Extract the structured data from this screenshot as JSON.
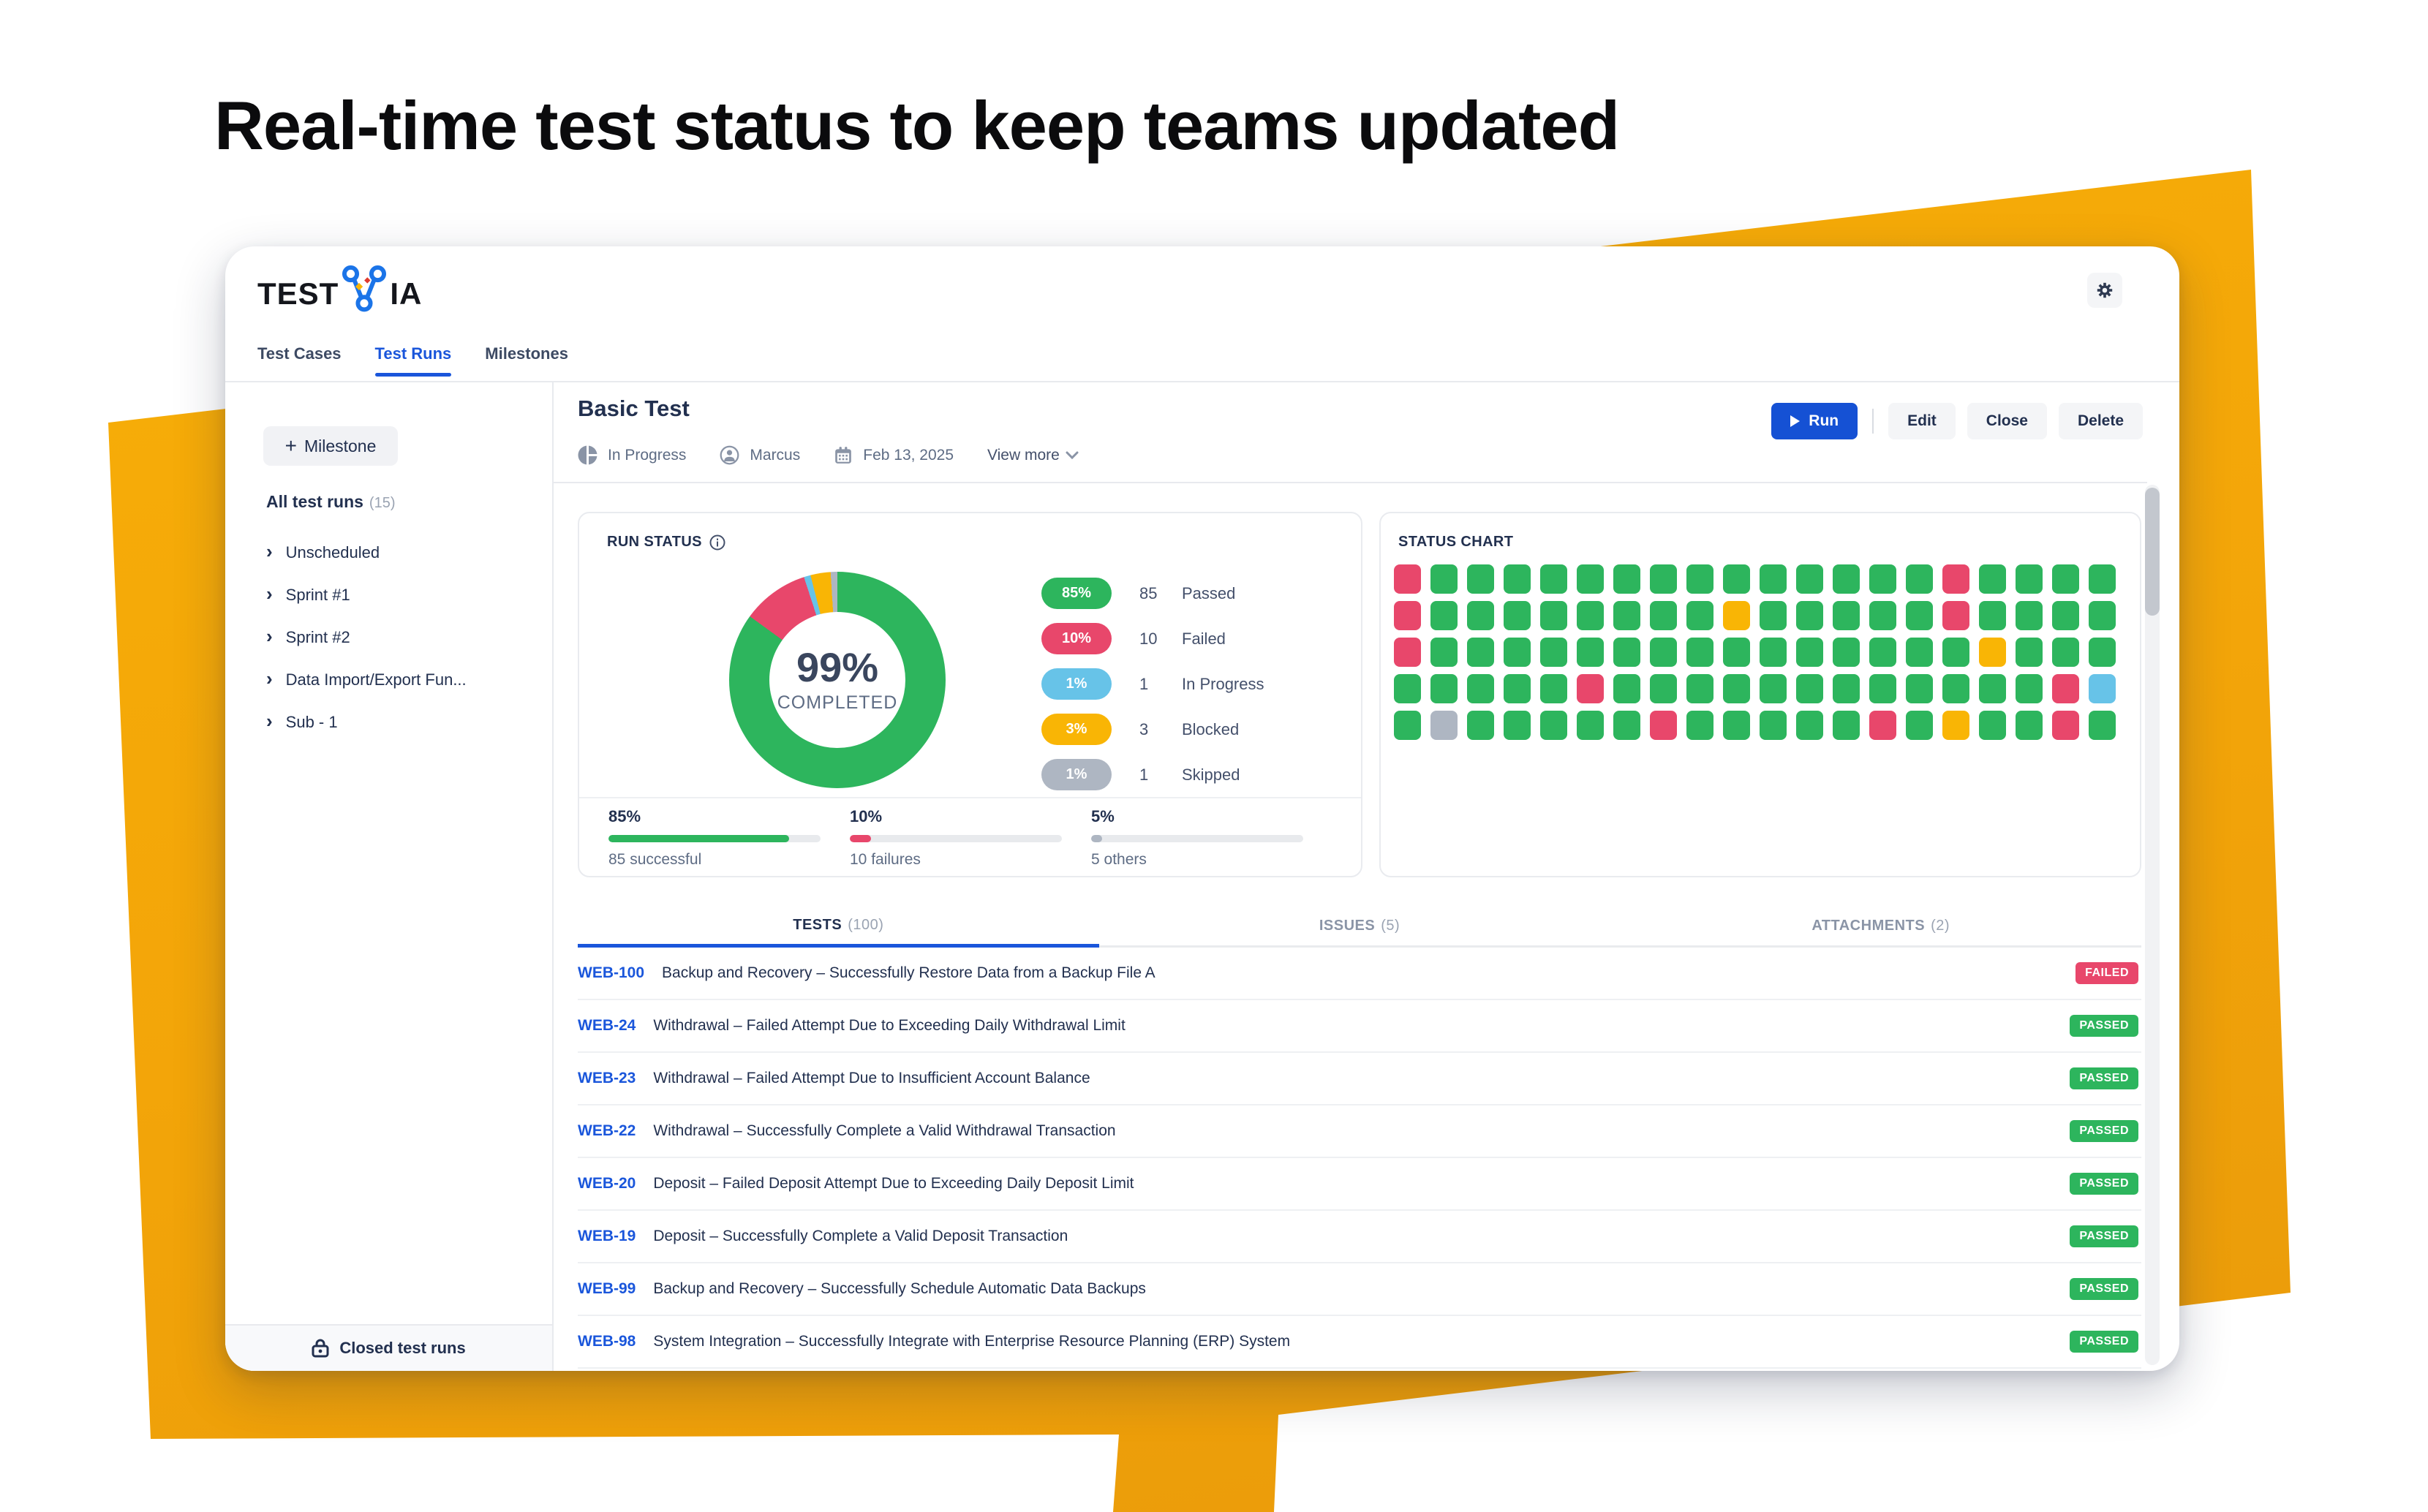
{
  "headline": "Real-time test status to keep teams updated",
  "colors": {
    "accent_blue": "#1A56DB",
    "run_button_blue": "#1551D4",
    "brand_navy": "#22304F",
    "logo_blue": "#1B74E8",
    "orange": "#F3A509",
    "green": "#2DB55D",
    "red": "#E8476B",
    "yellow": "#F9B505",
    "light_blue": "#67C3E8",
    "gray": "#AEB6C2"
  },
  "window": {
    "logo_prefix": "TEST",
    "logo_suffix": "IA",
    "nav_tabs": [
      {
        "label": "Test Cases",
        "active": false
      },
      {
        "label": "Test Runs",
        "active": true
      },
      {
        "label": "Milestones",
        "active": false
      }
    ]
  },
  "sidebar": {
    "milestone_button": "Milestone",
    "all_test_runs_label": "All test runs",
    "all_test_runs_count": "(15)",
    "items": [
      "Unscheduled",
      "Sprint #1",
      "Sprint #2",
      "Data Import/Export Fun...",
      "Sub - 1"
    ],
    "closed_label": "Closed test runs"
  },
  "run_header": {
    "title": "Basic Test",
    "status": "In Progress",
    "owner": "Marcus",
    "date": "Feb 13, 2025",
    "view_more": "View more",
    "buttons": {
      "run": "Run",
      "edit": "Edit",
      "close": "Close",
      "delete": "Delete"
    }
  },
  "run_status_panel": {
    "title": "RUN STATUS",
    "chart_data": {
      "type": "donut",
      "center_label": "99%",
      "center_sublabel": "COMPLETED",
      "segments": [
        {
          "label": "Passed",
          "count": "85",
          "percent": "85%",
          "value": 85,
          "color_key": "green"
        },
        {
          "label": "Failed",
          "count": "10",
          "percent": "10%",
          "value": 10,
          "color_key": "red"
        },
        {
          "label": "In Progress",
          "count": "1",
          "percent": "1%",
          "value": 1,
          "color_key": "light_blue"
        },
        {
          "label": "Blocked",
          "count": "3",
          "percent": "3%",
          "value": 3,
          "color_key": "yellow"
        },
        {
          "label": "Skipped",
          "count": "1",
          "percent": "1%",
          "value": 1,
          "color_key": "gray"
        }
      ]
    },
    "summary_bars": [
      {
        "percent": "85%",
        "value": 85,
        "label": "85 successful",
        "color_key": "green"
      },
      {
        "percent": "10%",
        "value": 10,
        "label": "10 failures",
        "color_key": "red"
      },
      {
        "percent": "5%",
        "value": 5,
        "label": "5 others",
        "color_key": "gray"
      }
    ]
  },
  "status_chart_panel": {
    "title": "STATUS CHART",
    "chart_data": {
      "type": "heatmap",
      "legend": {
        "P": "Passed",
        "F": "Failed",
        "B": "Blocked",
        "I": "In Progress",
        "S": "Skipped"
      },
      "color_keys": {
        "P": "green",
        "F": "red",
        "B": "yellow",
        "I": "light_blue",
        "S": "gray"
      },
      "rows": [
        "FPPPPPPPPPPPPPPFPPPP",
        "FPPPPPPPPBPPPPPFPPPP",
        "FPPPPPPPPPPPPPPPBPPP",
        "PPPPPFPPPPPPPPPPPPFI",
        "PSPPPPPFPPPPPFPBPPFP"
      ]
    }
  },
  "tests_section": {
    "tabs": [
      {
        "label": "TESTS",
        "count": "(100)",
        "active": true
      },
      {
        "label": "ISSUES",
        "count": "(5)",
        "active": false
      },
      {
        "label": "ATTACHMENTS",
        "count": "(2)",
        "active": false
      }
    ],
    "rows": [
      {
        "id": "WEB-100",
        "title": "Backup and Recovery – Successfully Restore Data from a Backup File A",
        "badge": "FAILED"
      },
      {
        "id": "WEB-24",
        "title": "Withdrawal – Failed Attempt Due to Exceeding Daily Withdrawal Limit",
        "badge": "PASSED"
      },
      {
        "id": "WEB-23",
        "title": "Withdrawal – Failed Attempt Due to Insufficient Account Balance",
        "badge": "PASSED"
      },
      {
        "id": "WEB-22",
        "title": "Withdrawal – Successfully Complete a Valid Withdrawal Transaction",
        "badge": "PASSED"
      },
      {
        "id": "WEB-20",
        "title": "Deposit – Failed Deposit Attempt Due to Exceeding Daily Deposit Limit",
        "badge": "PASSED"
      },
      {
        "id": "WEB-19",
        "title": "Deposit – Successfully Complete a Valid Deposit Transaction",
        "badge": "PASSED"
      },
      {
        "id": "WEB-99",
        "title": "Backup and Recovery – Successfully Schedule Automatic Data Backups",
        "badge": "PASSED"
      },
      {
        "id": "WEB-98",
        "title": "System Integration – Successfully Integrate with Enterprise Resource Planning (ERP) System",
        "badge": "PASSED"
      }
    ]
  }
}
